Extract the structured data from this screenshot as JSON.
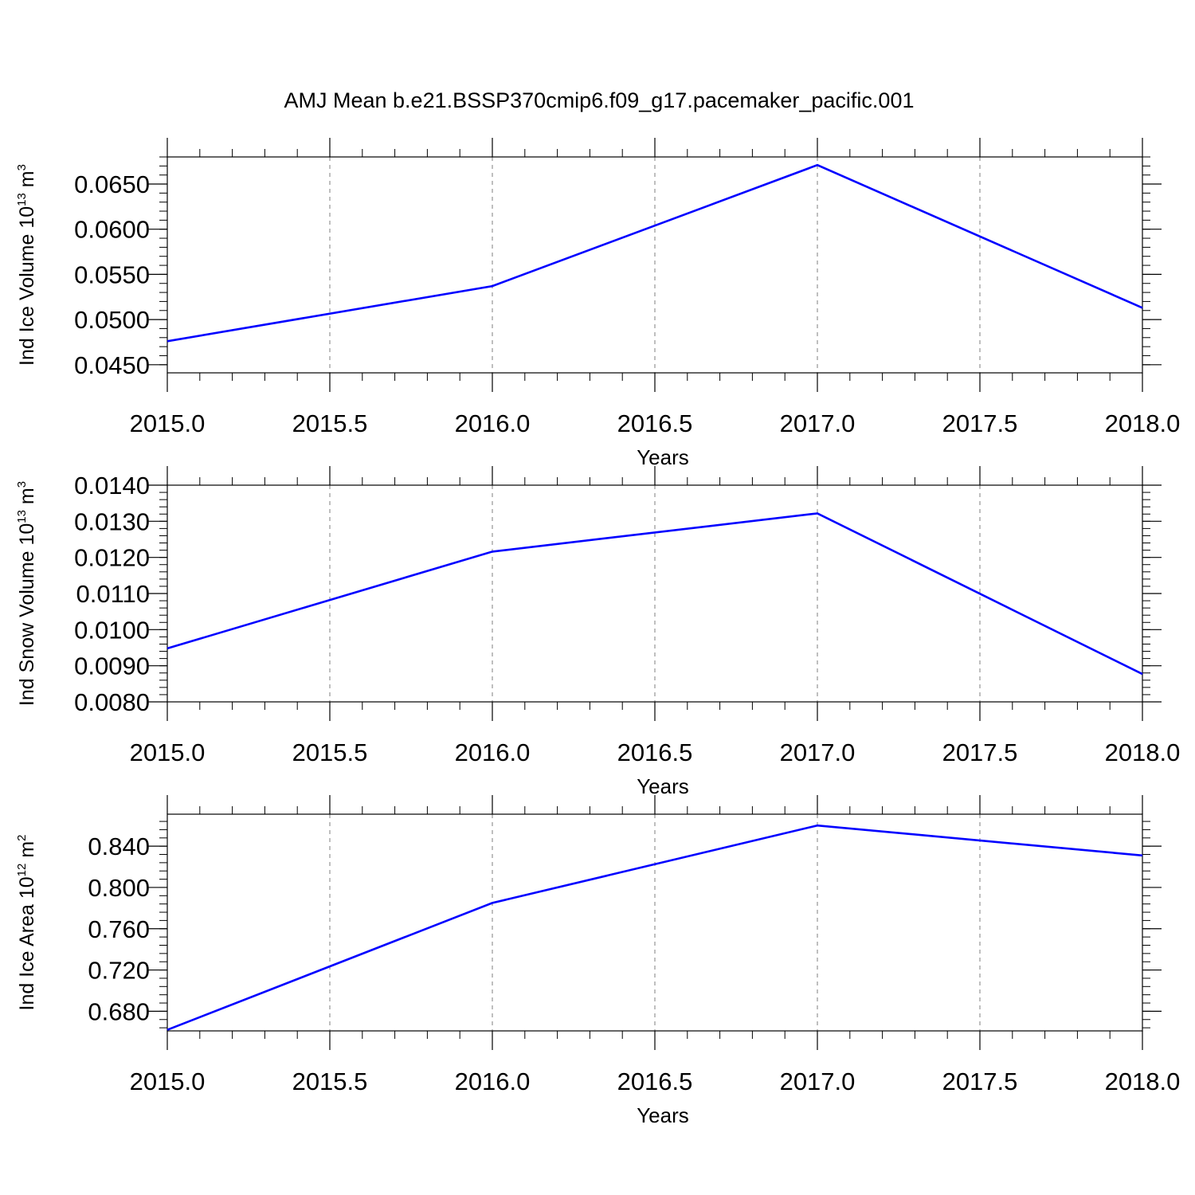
{
  "figure_title": "AMJ Mean b.e21.BSSP370cmip6.f09_g17.pacemaker_pacific.001",
  "chart_data": [
    {
      "type": "line",
      "xlabel": "Years",
      "ylabel": {
        "text": "Ind Ice Volume 10",
        "exp": "13",
        "unit": " m",
        "unit_exp": "3"
      },
      "x": [
        2015,
        2016,
        2017,
        2018
      ],
      "series": [
        {
          "values": [
            0.0476,
            0.0537,
            0.0671,
            0.0513
          ],
          "color": "#0000ff"
        }
      ],
      "xlim": [
        2015,
        2018
      ],
      "ylim": [
        0.0441,
        0.068
      ],
      "x_ticks": [
        "2015.0",
        "2015.5",
        "2016.0",
        "2016.5",
        "2017.0",
        "2017.5",
        "2018.0"
      ],
      "y_ticks": [
        "0.0450",
        "0.0500",
        "0.0550",
        "0.0600",
        "0.0650"
      ],
      "grid": "vertical dashed"
    },
    {
      "type": "line",
      "xlabel": "Years",
      "ylabel": {
        "text": "Ind Snow Volume 10",
        "exp": "13",
        "unit": " m",
        "unit_exp": "3"
      },
      "x": [
        2015,
        2016,
        2017,
        2018
      ],
      "series": [
        {
          "values": [
            0.00948,
            0.01216,
            0.01322,
            0.00877
          ],
          "color": "#0000ff"
        }
      ],
      "xlim": [
        2015,
        2018
      ],
      "ylim": [
        0.008,
        0.014
      ],
      "x_ticks": [
        "2015.0",
        "2015.5",
        "2016.0",
        "2016.5",
        "2017.0",
        "2017.5",
        "2018.0"
      ],
      "y_ticks": [
        "0.0080",
        "0.0090",
        "0.0100",
        "0.0110",
        "0.0120",
        "0.0130",
        "0.0140"
      ],
      "grid": "vertical dashed"
    },
    {
      "type": "line",
      "xlabel": "Years",
      "ylabel": {
        "text": "Ind Ice Area 10",
        "exp": "12",
        "unit": " m",
        "unit_exp": "2"
      },
      "x": [
        2015,
        2016,
        2017,
        2018
      ],
      "series": [
        {
          "values": [
            0.662,
            0.785,
            0.86,
            0.831
          ],
          "color": "#0000ff"
        }
      ],
      "xlim": [
        2015,
        2018
      ],
      "ylim": [
        0.661,
        0.871
      ],
      "x_ticks": [
        "2015.0",
        "2015.5",
        "2016.0",
        "2016.5",
        "2017.0",
        "2017.5",
        "2018.0"
      ],
      "y_ticks": [
        "0.680",
        "0.720",
        "0.760",
        "0.800",
        "0.840"
      ],
      "grid": "vertical dashed"
    }
  ]
}
